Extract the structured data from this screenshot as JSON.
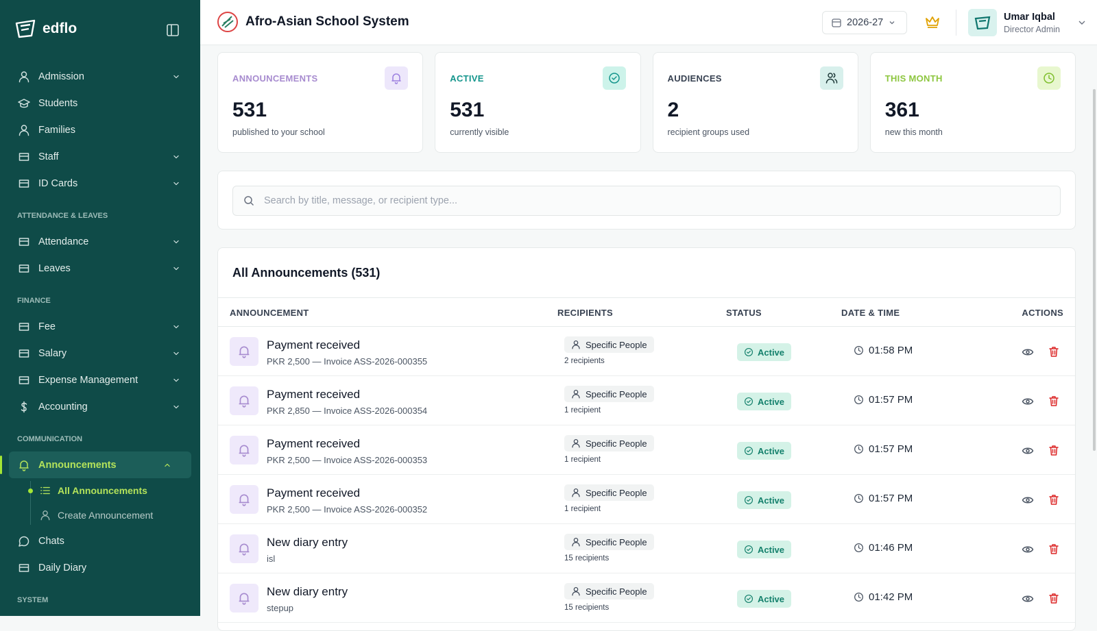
{
  "sidebar": {
    "brand": "edflo",
    "groups": [
      {
        "items": [
          {
            "label": "Admission"
          },
          {
            "label": "Students"
          },
          {
            "label": "Families"
          },
          {
            "label": "Staff"
          },
          {
            "label": "ID Cards"
          }
        ]
      },
      {
        "heading": "ATTENDANCE & LEAVES",
        "items": [
          {
            "label": "Attendance"
          },
          {
            "label": "Leaves"
          }
        ]
      },
      {
        "heading": "FINANCE",
        "items": [
          {
            "label": "Fee"
          },
          {
            "label": "Salary"
          },
          {
            "label": "Expense Management"
          },
          {
            "label": "Accounting"
          }
        ]
      },
      {
        "heading": "COMMUNICATION",
        "items": [
          {
            "label": "Announcements",
            "children": [
              "All Announcements",
              "Create Announcement"
            ]
          },
          {
            "label": "Chats"
          },
          {
            "label": "Daily Diary"
          }
        ]
      },
      {
        "heading": "SYSTEM"
      }
    ]
  },
  "header": {
    "school": "Afro-Asian School System",
    "year": "2026-27",
    "user_name": "Umar Iqbal",
    "user_role": "Director Admin"
  },
  "stats": [
    {
      "label": "ANNOUNCEMENTS",
      "value": 531,
      "note": "published to your school"
    },
    {
      "label": "ACTIVE",
      "value": 531,
      "note": "currently visible"
    },
    {
      "label": "AUDIENCES",
      "value": 2,
      "note": "recipient groups used"
    },
    {
      "label": "THIS MONTH",
      "value": 361,
      "note": "new this month"
    }
  ],
  "search": {
    "placeholder": "Search by title, message, or recipient type..."
  },
  "table": {
    "title": "All Announcements (531)",
    "columns": [
      "ANNOUNCEMENT",
      "RECIPIENTS",
      "STATUS",
      "DATE & TIME",
      "ACTIONS"
    ],
    "rows": [
      {
        "title": "Payment received",
        "subtitle": "PKR 2,500 — Invoice ASS-2026-000355",
        "recipient_type": "Specific People",
        "recipient_count": "2 recipients",
        "status": "Active",
        "time": "01:58 PM"
      },
      {
        "title": "Payment received",
        "subtitle": "PKR 2,850 — Invoice ASS-2026-000354",
        "recipient_type": "Specific People",
        "recipient_count": "1 recipient",
        "status": "Active",
        "time": "01:57 PM"
      },
      {
        "title": "Payment received",
        "subtitle": "PKR 2,500 — Invoice ASS-2026-000353",
        "recipient_type": "Specific People",
        "recipient_count": "1 recipient",
        "status": "Active",
        "time": "01:57 PM"
      },
      {
        "title": "Payment received",
        "subtitle": "PKR 2,500 — Invoice ASS-2026-000352",
        "recipient_type": "Specific People",
        "recipient_count": "1 recipient",
        "status": "Active",
        "time": "01:57 PM"
      },
      {
        "title": "New diary entry",
        "subtitle": "isl",
        "recipient_type": "Specific People",
        "recipient_count": "15 recipients",
        "status": "Active",
        "time": "01:46 PM"
      },
      {
        "title": "New diary entry",
        "subtitle": "stepup",
        "recipient_type": "Specific People",
        "recipient_count": "15 recipients",
        "status": "Active",
        "time": "01:42 PM"
      }
    ]
  }
}
